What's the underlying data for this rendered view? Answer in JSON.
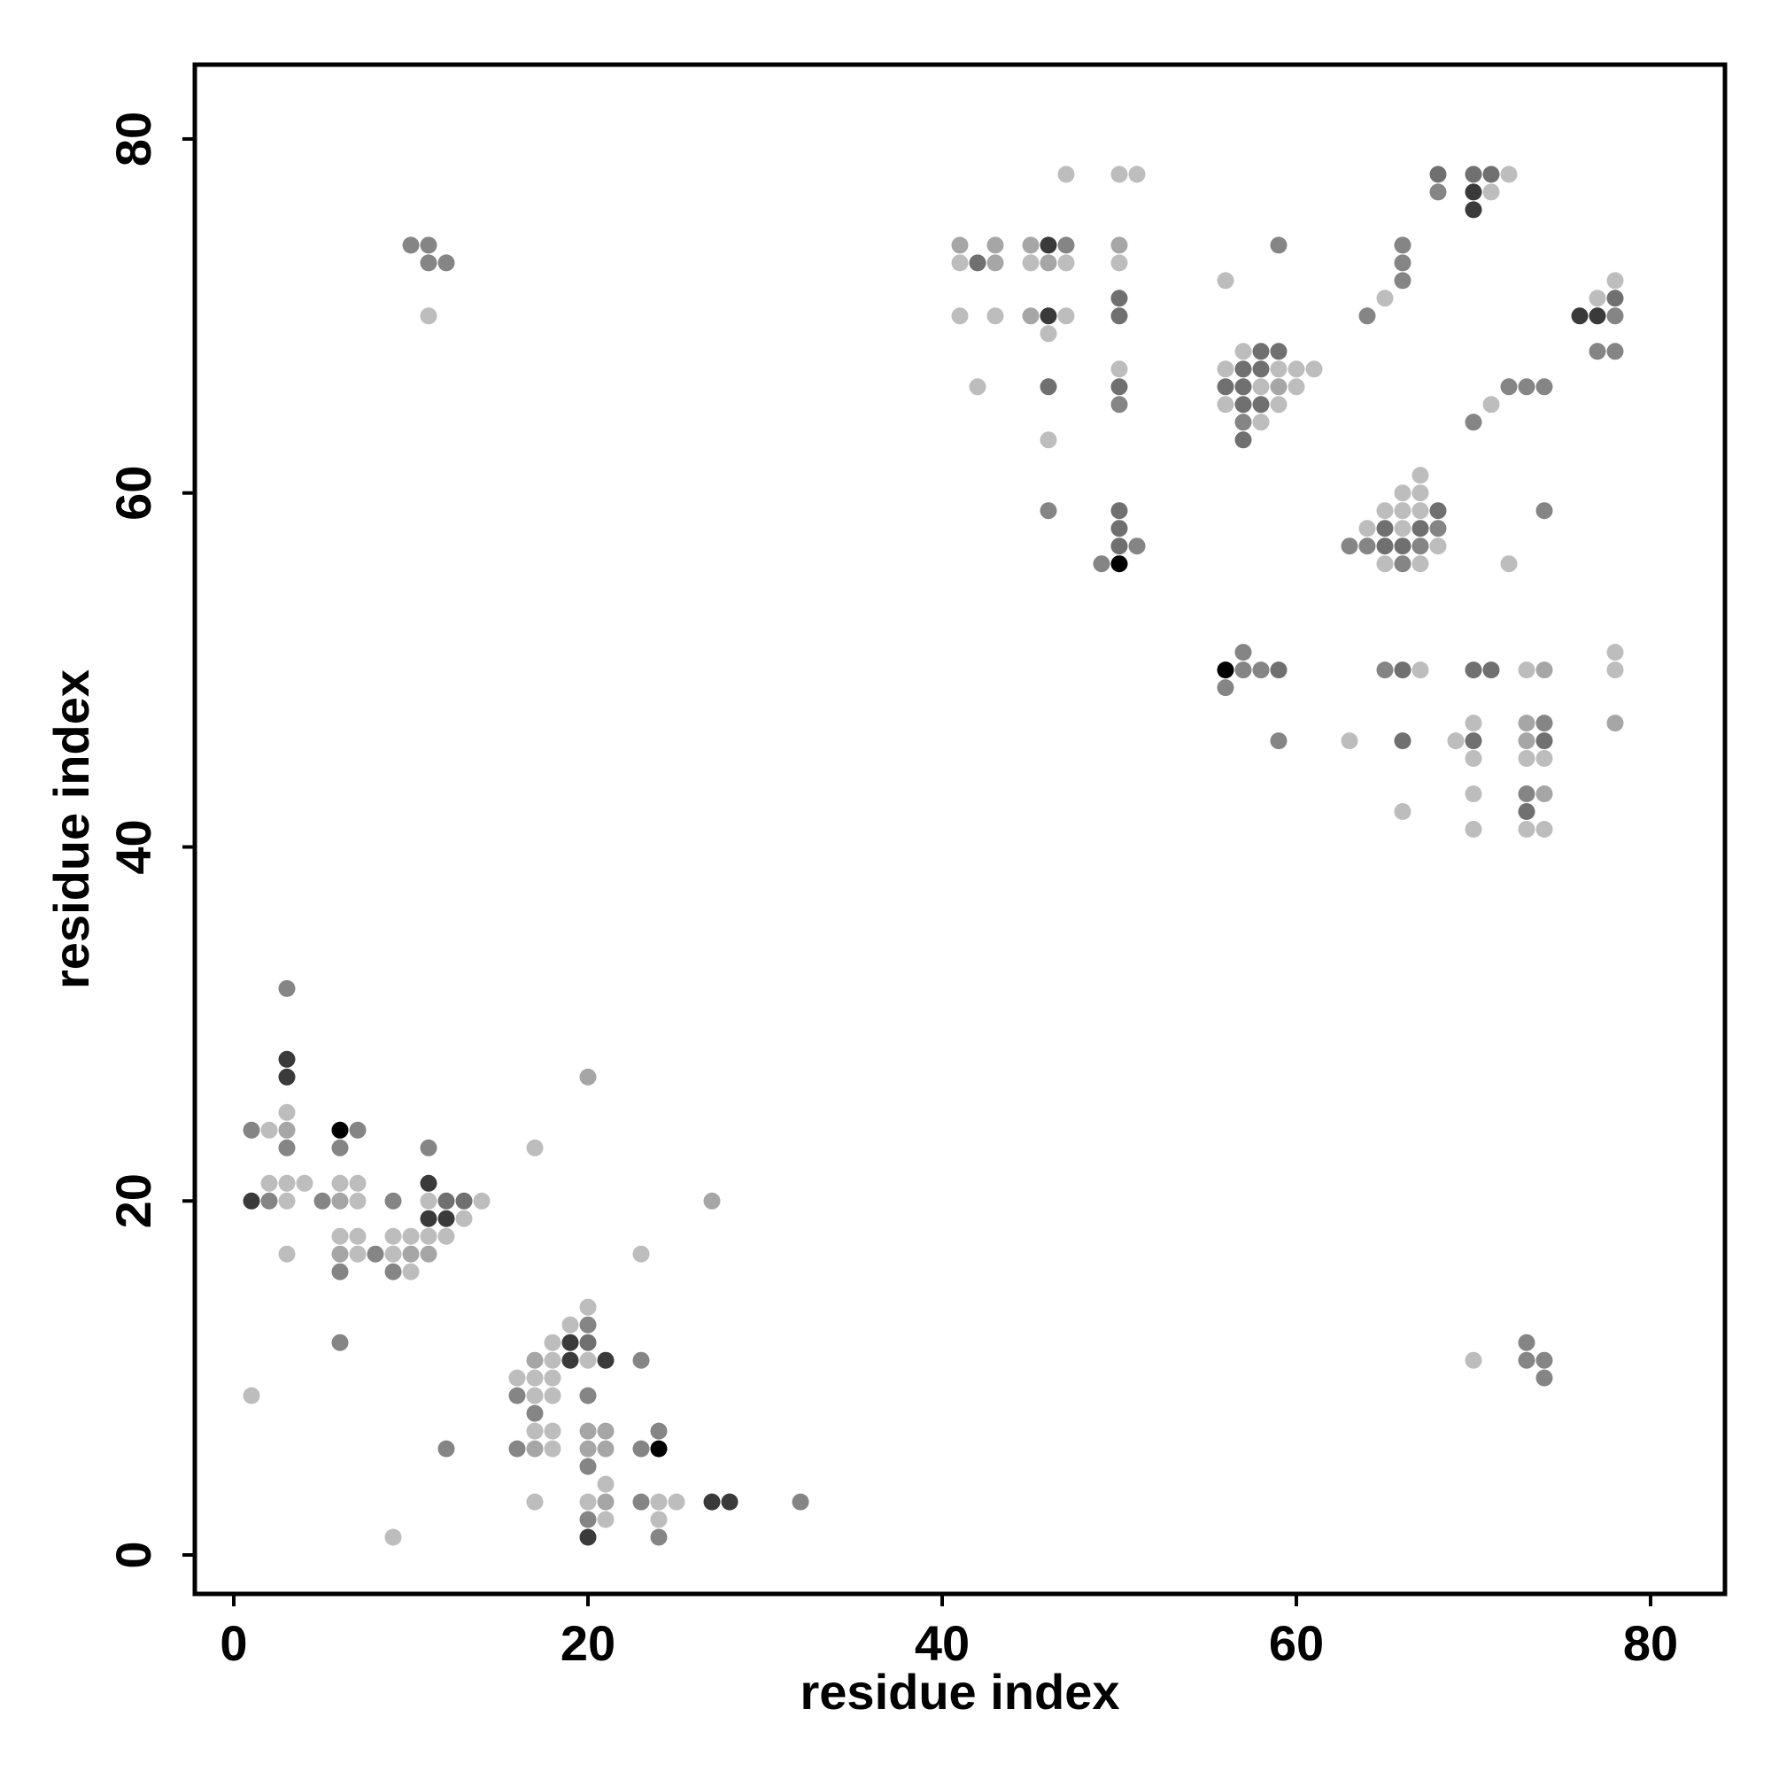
{
  "chart_data": {
    "type": "scatter",
    "xlabel": "residue index",
    "ylabel": "residue index",
    "xlim": [
      -2.2,
      84.2
    ],
    "ylim": [
      -2.2,
      84.2
    ],
    "xticks": [
      0,
      20,
      40,
      60,
      80
    ],
    "yticks": [
      0,
      20,
      40,
      60,
      80
    ],
    "grid": false,
    "shade_colors": {
      "1": "#bdbdbd",
      "2": "#a6a6a6",
      "3": "#858585",
      "4": "#707070",
      "5": "#3a3a3a",
      "6": "#000000"
    },
    "points": [
      [
        1,
        24,
        3
      ],
      [
        1,
        20,
        5
      ],
      [
        1,
        9,
        1
      ],
      [
        2,
        24,
        1
      ],
      [
        2,
        21,
        1
      ],
      [
        2,
        20,
        3
      ],
      [
        3,
        32,
        3
      ],
      [
        3,
        28,
        5
      ],
      [
        3,
        27,
        5
      ],
      [
        3,
        25,
        1
      ],
      [
        3,
        24,
        2
      ],
      [
        3,
        23,
        3
      ],
      [
        3,
        21,
        1
      ],
      [
        3,
        20,
        1
      ],
      [
        3,
        17,
        1
      ],
      [
        4,
        21,
        1
      ],
      [
        5,
        20,
        3
      ],
      [
        6,
        24,
        6
      ],
      [
        6,
        23,
        3
      ],
      [
        6,
        21,
        1
      ],
      [
        6,
        20,
        2
      ],
      [
        6,
        18,
        1
      ],
      [
        6,
        17,
        2
      ],
      [
        6,
        16,
        3
      ],
      [
        6,
        12,
        3
      ],
      [
        7,
        24,
        3
      ],
      [
        7,
        21,
        1
      ],
      [
        7,
        20,
        1
      ],
      [
        7,
        18,
        1
      ],
      [
        7,
        17,
        1
      ],
      [
        8,
        17,
        3
      ],
      [
        9,
        20,
        3
      ],
      [
        9,
        18,
        1
      ],
      [
        9,
        17,
        1
      ],
      [
        9,
        16,
        3
      ],
      [
        9,
        1,
        1
      ],
      [
        10,
        18,
        1
      ],
      [
        10,
        17,
        2
      ],
      [
        10,
        16,
        1
      ],
      [
        10,
        74,
        3
      ],
      [
        11,
        74,
        3
      ],
      [
        11,
        73,
        3
      ],
      [
        11,
        70,
        1
      ],
      [
        11,
        23,
        3
      ],
      [
        11,
        21,
        5
      ],
      [
        11,
        20,
        1
      ],
      [
        11,
        19,
        5
      ],
      [
        11,
        18,
        1
      ],
      [
        11,
        17,
        2
      ],
      [
        12,
        73,
        3
      ],
      [
        12,
        20,
        4
      ],
      [
        12,
        19,
        5
      ],
      [
        12,
        18,
        1
      ],
      [
        12,
        6,
        3
      ],
      [
        13,
        20,
        4
      ],
      [
        13,
        19,
        1
      ],
      [
        14,
        20,
        1
      ],
      [
        16,
        10,
        1
      ],
      [
        16,
        9,
        3
      ],
      [
        16,
        6,
        3
      ],
      [
        17,
        23,
        1
      ],
      [
        17,
        11,
        2
      ],
      [
        17,
        10,
        1
      ],
      [
        17,
        9,
        1
      ],
      [
        17,
        8,
        3
      ],
      [
        17,
        7,
        1
      ],
      [
        17,
        6,
        2
      ],
      [
        17,
        3,
        1
      ],
      [
        18,
        12,
        1
      ],
      [
        18,
        11,
        1
      ],
      [
        18,
        10,
        1
      ],
      [
        18,
        9,
        1
      ],
      [
        18,
        7,
        1
      ],
      [
        18,
        6,
        1
      ],
      [
        19,
        13,
        1
      ],
      [
        19,
        12,
        5
      ],
      [
        19,
        11,
        5
      ],
      [
        20,
        27,
        2
      ],
      [
        20,
        14,
        1
      ],
      [
        20,
        13,
        3
      ],
      [
        20,
        12,
        4
      ],
      [
        20,
        11,
        1
      ],
      [
        20,
        9,
        3
      ],
      [
        20,
        7,
        2
      ],
      [
        20,
        6,
        2
      ],
      [
        20,
        5,
        3
      ],
      [
        20,
        3,
        1
      ],
      [
        20,
        2,
        3
      ],
      [
        20,
        1,
        5
      ],
      [
        21,
        11,
        5
      ],
      [
        21,
        7,
        2
      ],
      [
        21,
        6,
        2
      ],
      [
        21,
        4,
        1
      ],
      [
        21,
        3,
        2
      ],
      [
        21,
        2,
        1
      ],
      [
        23,
        17,
        1
      ],
      [
        23,
        11,
        3
      ],
      [
        23,
        6,
        3
      ],
      [
        23,
        3,
        3
      ],
      [
        24,
        7,
        3
      ],
      [
        24,
        6,
        6
      ],
      [
        24,
        3,
        1
      ],
      [
        24,
        2,
        1
      ],
      [
        24,
        1,
        3
      ],
      [
        25,
        3,
        1
      ],
      [
        27,
        20,
        2
      ],
      [
        27,
        3,
        5
      ],
      [
        28,
        3,
        5
      ],
      [
        32,
        3,
        3
      ],
      [
        41,
        74,
        2
      ],
      [
        41,
        73,
        1
      ],
      [
        41,
        70,
        1
      ],
      [
        42,
        73,
        4
      ],
      [
        42,
        66,
        1
      ],
      [
        43,
        74,
        2
      ],
      [
        43,
        73,
        2
      ],
      [
        43,
        70,
        1
      ],
      [
        45,
        74,
        2
      ],
      [
        45,
        73,
        1
      ],
      [
        45,
        70,
        2
      ],
      [
        46,
        74,
        5
      ],
      [
        46,
        73,
        2
      ],
      [
        46,
        70,
        5
      ],
      [
        46,
        69,
        1
      ],
      [
        46,
        66,
        4
      ],
      [
        46,
        63,
        1
      ],
      [
        46,
        59,
        3
      ],
      [
        47,
        78,
        1
      ],
      [
        47,
        74,
        3
      ],
      [
        47,
        73,
        1
      ],
      [
        47,
        70,
        1
      ],
      [
        49,
        56,
        3
      ],
      [
        50,
        78,
        1
      ],
      [
        50,
        74,
        2
      ],
      [
        50,
        73,
        1
      ],
      [
        50,
        71,
        4
      ],
      [
        50,
        70,
        4
      ],
      [
        50,
        67,
        1
      ],
      [
        50,
        66,
        4
      ],
      [
        50,
        65,
        3
      ],
      [
        50,
        59,
        4
      ],
      [
        50,
        58,
        4
      ],
      [
        50,
        57,
        4
      ],
      [
        50,
        56,
        6
      ],
      [
        51,
        78,
        1
      ],
      [
        51,
        57,
        3
      ],
      [
        56,
        72,
        1
      ],
      [
        56,
        67,
        1
      ],
      [
        56,
        66,
        4
      ],
      [
        56,
        65,
        1
      ],
      [
        56,
        50,
        6
      ],
      [
        56,
        49,
        3
      ],
      [
        57,
        68,
        1
      ],
      [
        57,
        67,
        4
      ],
      [
        57,
        66,
        4
      ],
      [
        57,
        65,
        4
      ],
      [
        57,
        64,
        3
      ],
      [
        57,
        63,
        4
      ],
      [
        57,
        51,
        3
      ],
      [
        57,
        50,
        3
      ],
      [
        58,
        68,
        4
      ],
      [
        58,
        67,
        4
      ],
      [
        58,
        66,
        1
      ],
      [
        58,
        65,
        4
      ],
      [
        58,
        64,
        1
      ],
      [
        58,
        50,
        3
      ],
      [
        59,
        74,
        3
      ],
      [
        59,
        68,
        4
      ],
      [
        59,
        67,
        1
      ],
      [
        59,
        66,
        2
      ],
      [
        59,
        65,
        1
      ],
      [
        59,
        50,
        4
      ],
      [
        59,
        46,
        3
      ],
      [
        60,
        67,
        1
      ],
      [
        60,
        66,
        1
      ],
      [
        61,
        67,
        1
      ],
      [
        63,
        57,
        3
      ],
      [
        63,
        46,
        1
      ],
      [
        64,
        70,
        3
      ],
      [
        64,
        58,
        1
      ],
      [
        64,
        57,
        3
      ],
      [
        65,
        71,
        1
      ],
      [
        65,
        59,
        1
      ],
      [
        65,
        58,
        4
      ],
      [
        65,
        57,
        4
      ],
      [
        65,
        56,
        1
      ],
      [
        65,
        50,
        3
      ],
      [
        66,
        74,
        3
      ],
      [
        66,
        73,
        3
      ],
      [
        66,
        72,
        3
      ],
      [
        66,
        60,
        1
      ],
      [
        66,
        59,
        1
      ],
      [
        66,
        58,
        1
      ],
      [
        66,
        57,
        4
      ],
      [
        66,
        56,
        3
      ],
      [
        66,
        50,
        4
      ],
      [
        66,
        46,
        4
      ],
      [
        66,
        42,
        1
      ],
      [
        67,
        61,
        1
      ],
      [
        67,
        60,
        1
      ],
      [
        67,
        59,
        1
      ],
      [
        67,
        58,
        4
      ],
      [
        67,
        57,
        3
      ],
      [
        67,
        56,
        1
      ],
      [
        67,
        50,
        1
      ],
      [
        68,
        78,
        4
      ],
      [
        68,
        77,
        3
      ],
      [
        68,
        59,
        4
      ],
      [
        68,
        58,
        3
      ],
      [
        68,
        57,
        1
      ],
      [
        69,
        46,
        1
      ],
      [
        70,
        78,
        4
      ],
      [
        70,
        77,
        5
      ],
      [
        70,
        76,
        5
      ],
      [
        70,
        64,
        3
      ],
      [
        70,
        50,
        4
      ],
      [
        70,
        47,
        1
      ],
      [
        70,
        46,
        4
      ],
      [
        70,
        45,
        1
      ],
      [
        70,
        43,
        1
      ],
      [
        70,
        41,
        1
      ],
      [
        70,
        11,
        1
      ],
      [
        71,
        78,
        4
      ],
      [
        71,
        77,
        1
      ],
      [
        71,
        65,
        1
      ],
      [
        71,
        50,
        4
      ],
      [
        72,
        78,
        1
      ],
      [
        72,
        66,
        3
      ],
      [
        72,
        56,
        1
      ],
      [
        73,
        66,
        3
      ],
      [
        73,
        50,
        1
      ],
      [
        73,
        47,
        2
      ],
      [
        73,
        46,
        2
      ],
      [
        73,
        45,
        1
      ],
      [
        73,
        43,
        3
      ],
      [
        73,
        42,
        4
      ],
      [
        73,
        41,
        1
      ],
      [
        73,
        12,
        3
      ],
      [
        73,
        11,
        3
      ],
      [
        74,
        66,
        3
      ],
      [
        74,
        59,
        3
      ],
      [
        74,
        50,
        2
      ],
      [
        74,
        47,
        3
      ],
      [
        74,
        46,
        4
      ],
      [
        74,
        45,
        1
      ],
      [
        74,
        43,
        2
      ],
      [
        74,
        41,
        1
      ],
      [
        74,
        11,
        3
      ],
      [
        74,
        10,
        3
      ],
      [
        76,
        70,
        5
      ],
      [
        77,
        71,
        1
      ],
      [
        77,
        70,
        5
      ],
      [
        77,
        68,
        3
      ],
      [
        78,
        72,
        1
      ],
      [
        78,
        71,
        4
      ],
      [
        78,
        70,
        3
      ],
      [
        78,
        68,
        3
      ],
      [
        78,
        51,
        1
      ],
      [
        78,
        50,
        1
      ],
      [
        78,
        47,
        2
      ]
    ]
  }
}
